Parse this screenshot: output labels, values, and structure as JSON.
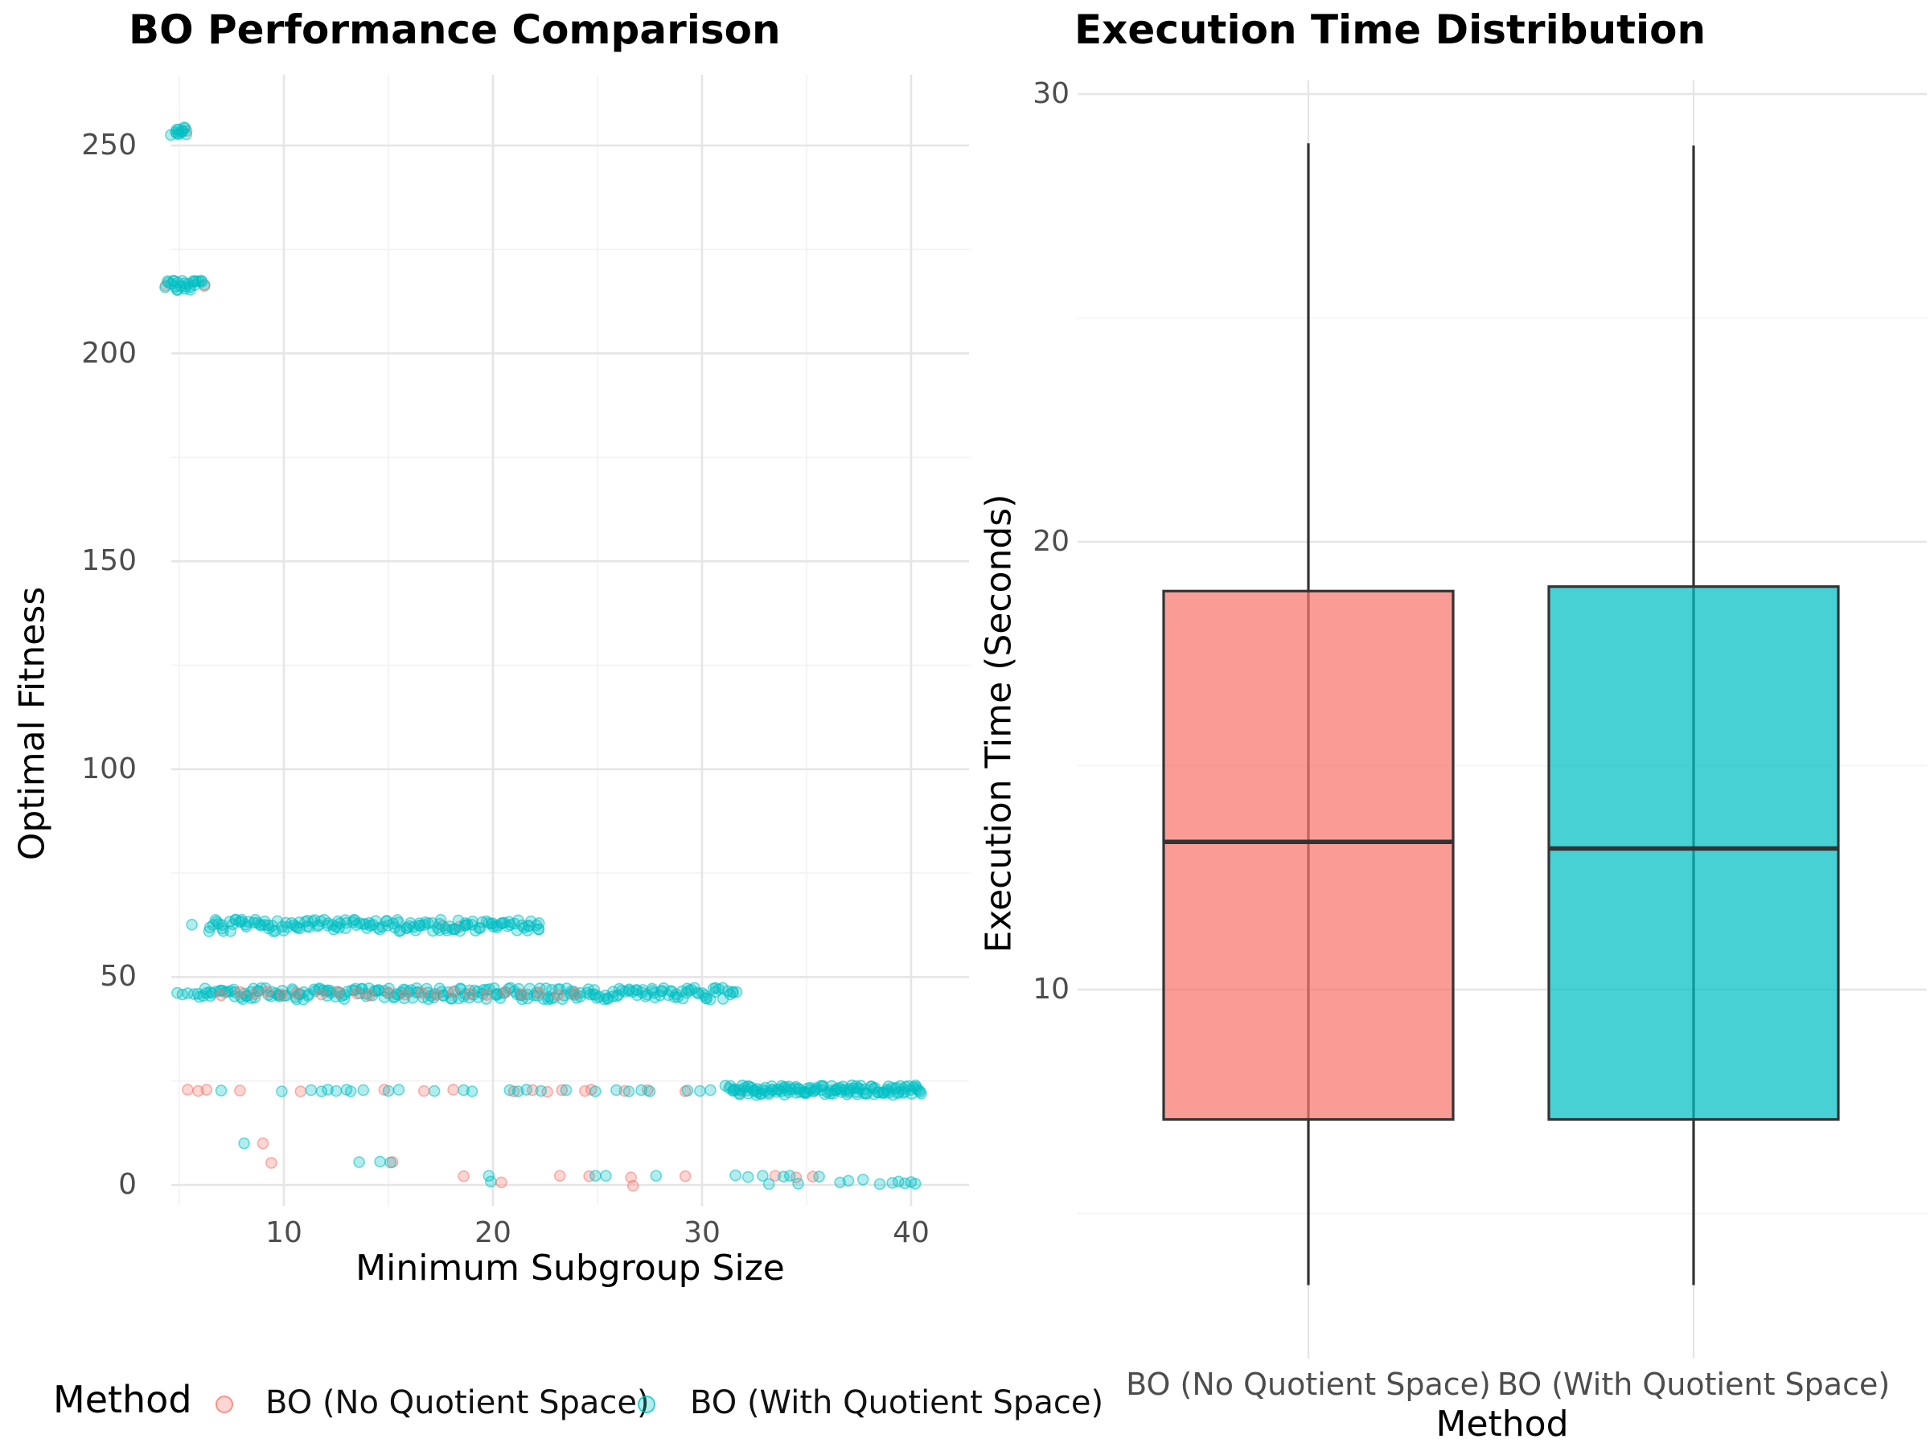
{
  "palette": {
    "pink": "#F8766D",
    "teal": "#00BFC4",
    "box_stroke": "#333333",
    "grid_major": "#E5E5E5",
    "grid_minor": "#F2F2F2",
    "tick_text": "#4d4d4d"
  },
  "legend": {
    "title": "Method",
    "items": [
      {
        "label": "BO (No Quotient Space)",
        "color": "#F8766D"
      },
      {
        "label": "BO (With Quotient Space)",
        "color": "#00BFC4"
      }
    ]
  },
  "chart_data": [
    {
      "type": "scatter",
      "title": "BO Performance Comparison",
      "xlabel": "Minimum Subgroup Size",
      "ylabel": "Optimal Fitness",
      "xlim": [
        3.6,
        42.8
      ],
      "ylim": [
        -5,
        267
      ],
      "xticks": [
        10,
        20,
        30,
        40
      ],
      "x_minor": [
        5,
        15,
        25,
        35
      ],
      "yticks": [
        0,
        50,
        100,
        150,
        200,
        250
      ],
      "y_minor": [
        25,
        75,
        125,
        175,
        225
      ],
      "grid": true,
      "legend_position": "bottom",
      "point_alpha": 0.3,
      "series": [
        {
          "name": "BO (No Quotient Space)",
          "color": "#F8766D",
          "points_under": [
            [
              5.35,
              253.5
            ],
            [
              4.35,
              216.3
            ],
            [
              6.2,
              216.2
            ],
            [
              17.6,
              62.3
            ],
            [
              18.4,
              62.1
            ],
            [
              31.9,
              22.6
            ]
          ],
          "points": [
            [
              7.0,
              45.6
            ],
            [
              7.9,
              46.4
            ],
            [
              8.6,
              45.9
            ],
            [
              9.2,
              46.5
            ],
            [
              9.9,
              45.7
            ],
            [
              10.6,
              46.2
            ],
            [
              11.8,
              45.8
            ],
            [
              12.6,
              46.4
            ],
            [
              13.5,
              46.0
            ],
            [
              14.1,
              45.6
            ],
            [
              15.0,
              46.3
            ],
            [
              15.8,
              45.8
            ],
            [
              16.6,
              46.2
            ],
            [
              17.3,
              45.7
            ],
            [
              18.1,
              46.4
            ],
            [
              18.9,
              46.0
            ],
            [
              19.7,
              45.7
            ],
            [
              20.6,
              46.3
            ],
            [
              21.4,
              45.9
            ],
            [
              22.2,
              46.2
            ],
            [
              23.1,
              45.7
            ],
            [
              23.9,
              46.1
            ],
            [
              5.4,
              22.9
            ],
            [
              5.9,
              22.6
            ],
            [
              6.3,
              22.9
            ],
            [
              7.9,
              22.7
            ],
            [
              10.8,
              22.5
            ],
            [
              14.8,
              22.9
            ],
            [
              16.7,
              22.6
            ],
            [
              18.1,
              22.9
            ],
            [
              21.0,
              22.5
            ],
            [
              21.9,
              22.8
            ],
            [
              22.6,
              22.4
            ],
            [
              23.3,
              22.8
            ],
            [
              24.4,
              22.6
            ],
            [
              24.7,
              22.9
            ],
            [
              26.3,
              22.6
            ],
            [
              27.4,
              22.8
            ],
            [
              29.2,
              22.5
            ],
            [
              9.0,
              10.0
            ],
            [
              9.4,
              5.3
            ],
            [
              15.2,
              5.5
            ],
            [
              18.6,
              2.1
            ],
            [
              20.4,
              0.6
            ],
            [
              23.2,
              2.2
            ],
            [
              24.6,
              2.1
            ],
            [
              26.6,
              1.8
            ],
            [
              26.7,
              -0.2
            ],
            [
              29.2,
              2.1
            ],
            [
              33.5,
              2.2
            ],
            [
              34.5,
              1.8
            ],
            [
              35.3,
              2.0
            ]
          ]
        },
        {
          "name": "BO (With Quotient Space)",
          "color": "#00BFC4",
          "clusters": [
            {
              "y": 253.4,
              "x0": 4.7,
              "x1": 5.4,
              "n": 12,
              "jy": 1.0
            },
            {
              "y": 216.4,
              "x0": 4.4,
              "x1": 6.1,
              "n": 26,
              "jy": 1.2
            },
            {
              "y": 62.4,
              "x0": 6.35,
              "x1": 22.3,
              "n": 150,
              "jy": 1.4
            },
            {
              "y": 46.0,
              "x0": 5.9,
              "x1": 31.6,
              "n": 240,
              "jy": 1.4
            },
            {
              "y": 22.8,
              "x0": 31.2,
              "x1": 40.5,
              "n": 130,
              "jy": 1.2
            }
          ],
          "points": [
            [
              5.6,
              62.6
            ],
            [
              4.9,
              46.2
            ],
            [
              5.15,
              45.8
            ],
            [
              5.4,
              46.1
            ],
            [
              5.7,
              45.9
            ],
            [
              7.0,
              22.7
            ],
            [
              9.9,
              22.5
            ],
            [
              11.3,
              22.8
            ],
            [
              11.8,
              22.5
            ],
            [
              12.1,
              22.9
            ],
            [
              12.5,
              22.6
            ],
            [
              13.0,
              22.9
            ],
            [
              13.2,
              22.5
            ],
            [
              13.8,
              22.8
            ],
            [
              15.0,
              22.6
            ],
            [
              15.5,
              22.9
            ],
            [
              17.2,
              22.6
            ],
            [
              18.6,
              22.8
            ],
            [
              19.0,
              22.5
            ],
            [
              20.8,
              22.8
            ],
            [
              21.2,
              22.5
            ],
            [
              21.6,
              22.9
            ],
            [
              22.3,
              22.6
            ],
            [
              23.5,
              22.8
            ],
            [
              24.9,
              22.5
            ],
            [
              25.9,
              22.8
            ],
            [
              26.5,
              22.5
            ],
            [
              27.1,
              22.8
            ],
            [
              27.5,
              22.5
            ],
            [
              29.3,
              22.7
            ],
            [
              29.9,
              22.6
            ],
            [
              30.4,
              22.8
            ],
            [
              8.1,
              10.0
            ],
            [
              13.6,
              5.5
            ],
            [
              14.6,
              5.6
            ],
            [
              15.1,
              5.4
            ],
            [
              19.8,
              2.2
            ],
            [
              19.9,
              0.8
            ],
            [
              24.9,
              2.2
            ],
            [
              25.4,
              2.2
            ],
            [
              27.8,
              2.2
            ],
            [
              31.6,
              2.3
            ],
            [
              32.2,
              1.9
            ],
            [
              32.9,
              2.2
            ],
            [
              33.2,
              0.2
            ],
            [
              33.9,
              2.0
            ],
            [
              34.2,
              2.2
            ],
            [
              34.6,
              0.3
            ],
            [
              35.6,
              2.0
            ],
            [
              36.6,
              0.6
            ],
            [
              37.0,
              1.0
            ],
            [
              37.7,
              1.3
            ],
            [
              38.5,
              0.2
            ],
            [
              39.1,
              0.5
            ],
            [
              39.4,
              0.8
            ],
            [
              39.7,
              0.4
            ],
            [
              40.0,
              0.7
            ],
            [
              40.2,
              0.3
            ]
          ]
        }
      ]
    },
    {
      "type": "boxplot",
      "title": "Execution Time Distribution",
      "xlabel": "Method",
      "ylabel": "Execution Time (Seconds)",
      "ylim": [
        1.5,
        30.5
      ],
      "yticks": [
        10,
        20,
        30
      ],
      "y_minor": [
        5,
        15,
        25
      ],
      "grid": true,
      "categories": [
        "BO (No Quotient Space)",
        "BO (With Quotient Space)"
      ],
      "stats": [
        {
          "whisker_low": 3.4,
          "q1": 7.1,
          "median": 13.3,
          "q3": 18.9,
          "whisker_high": 28.9,
          "fill": "#F8766D"
        },
        {
          "whisker_low": 3.4,
          "q1": 7.1,
          "median": 13.15,
          "q3": 19.0,
          "whisker_high": 28.85,
          "fill": "#00BFC4"
        }
      ]
    }
  ]
}
